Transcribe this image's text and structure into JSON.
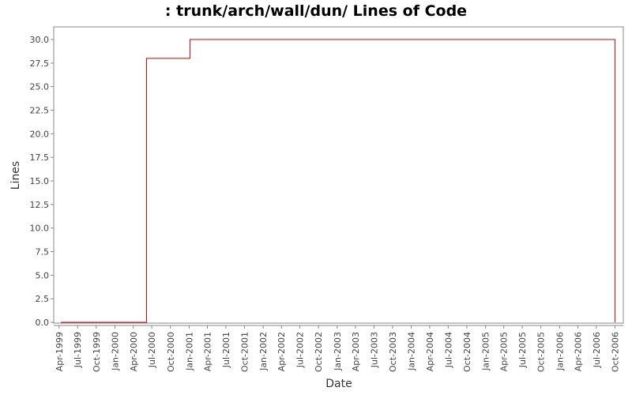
{
  "chart_data": {
    "type": "line",
    "title": ": trunk/arch/wall/dun/ Lines of Code",
    "xlabel": "Date",
    "ylabel": "Lines",
    "ylim": [
      0,
      31.5
    ],
    "xlim": [
      "1999-03-25",
      "2006-10-15"
    ],
    "x_ticks": [
      "Apr-1999",
      "Jul-1999",
      "Oct-1999",
      "Jan-2000",
      "Apr-2000",
      "Jul-2000",
      "Oct-2000",
      "Jan-2001",
      "Apr-2001",
      "Jul-2001",
      "Oct-2001",
      "Jan-2002",
      "Apr-2002",
      "Jul-2002",
      "Oct-2002",
      "Jan-2003",
      "Apr-2003",
      "Jul-2003",
      "Oct-2003",
      "Jan-2004",
      "Apr-2004",
      "Jul-2004",
      "Oct-2004",
      "Jan-2005",
      "Apr-2005",
      "Jul-2005",
      "Oct-2005",
      "Jan-2006",
      "Apr-2006",
      "Jul-2006",
      "Oct-2006"
    ],
    "y_ticks": [
      "0.0",
      "2.5",
      "5.0",
      "7.5",
      "10.0",
      "12.5",
      "15.0",
      "17.5",
      "20.0",
      "22.5",
      "25.0",
      "27.5",
      "30.0"
    ],
    "series": [
      {
        "color": "#cc0000",
        "step": true,
        "points": [
          {
            "x": "1999-04-10",
            "y": 0
          },
          {
            "x": "2000-06-05",
            "y": 28
          },
          {
            "x": "2001-01-05",
            "y": 30
          },
          {
            "x": "2006-10-01",
            "y": 0
          }
        ]
      }
    ],
    "grid": false
  }
}
